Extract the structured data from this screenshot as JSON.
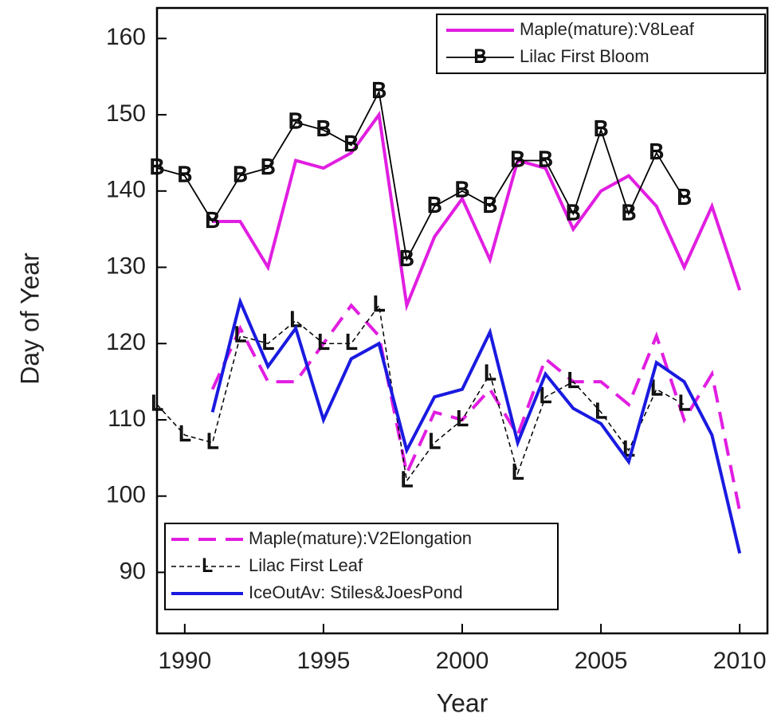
{
  "chart_data": {
    "type": "line",
    "xlabel": "Year",
    "ylabel": "Day of Year",
    "x": [
      1989,
      1990,
      1991,
      1992,
      1993,
      1994,
      1995,
      1996,
      1997,
      1998,
      1999,
      2000,
      2001,
      2002,
      2003,
      2004,
      2005,
      2006,
      2007,
      2008,
      2009,
      2010
    ],
    "xlim": [
      1989,
      2011
    ],
    "xticks": [
      1990,
      1995,
      2000,
      2005,
      2010
    ],
    "ylim": [
      82,
      164
    ],
    "yticks": [
      90,
      100,
      110,
      120,
      130,
      140,
      150,
      160
    ],
    "series": [
      {
        "name": "Maple(mature):V8Leaf",
        "color": "#e11ee1",
        "width": 4,
        "dash": false,
        "legend": "upper right",
        "values": [
          null,
          null,
          136,
          136,
          130,
          144,
          143,
          145,
          150,
          125,
          134,
          139,
          131,
          144,
          143,
          135,
          140,
          142,
          138,
          130,
          138,
          127
        ]
      },
      {
        "name": "Lilac First Bloom",
        "color": "#000000",
        "width": 1.8,
        "dash": false,
        "marker": "B",
        "legend": "upper right",
        "values": [
          143,
          142,
          136,
          142,
          143,
          149,
          148,
          146,
          153,
          131,
          138,
          140,
          138,
          144,
          144,
          137,
          148,
          137,
          145,
          139,
          null,
          null
        ]
      },
      {
        "name": "Maple(mature):V2Elongation",
        "color": "#e11ee1",
        "width": 4,
        "dash": true,
        "legend": "lower left",
        "values": [
          null,
          null,
          114,
          122,
          115,
          115,
          120,
          125,
          121,
          103,
          111,
          110,
          114,
          108,
          118,
          115,
          115,
          112,
          121,
          110,
          116,
          98
        ]
      },
      {
        "name": "Lilac First Leaf",
        "color": "#000000",
        "width": 1.5,
        "dash": true,
        "marker": "L",
        "legend": "lower left",
        "values": [
          112,
          108,
          107,
          121,
          120,
          123,
          120,
          120,
          125,
          102,
          107,
          110,
          116,
          103,
          113,
          115,
          111,
          106,
          114,
          112,
          null,
          null
        ]
      },
      {
        "name": "IceOutAv: Stiles&JoesPond",
        "color": "#1a1ae0",
        "width": 4,
        "dash": false,
        "legend": "lower left",
        "values": [
          null,
          null,
          111,
          125.5,
          117,
          122,
          110,
          118,
          120,
          106,
          113,
          114,
          121.5,
          107,
          116,
          111.5,
          109.5,
          104.5,
          117.5,
          115,
          108,
          92.5
        ]
      }
    ]
  }
}
